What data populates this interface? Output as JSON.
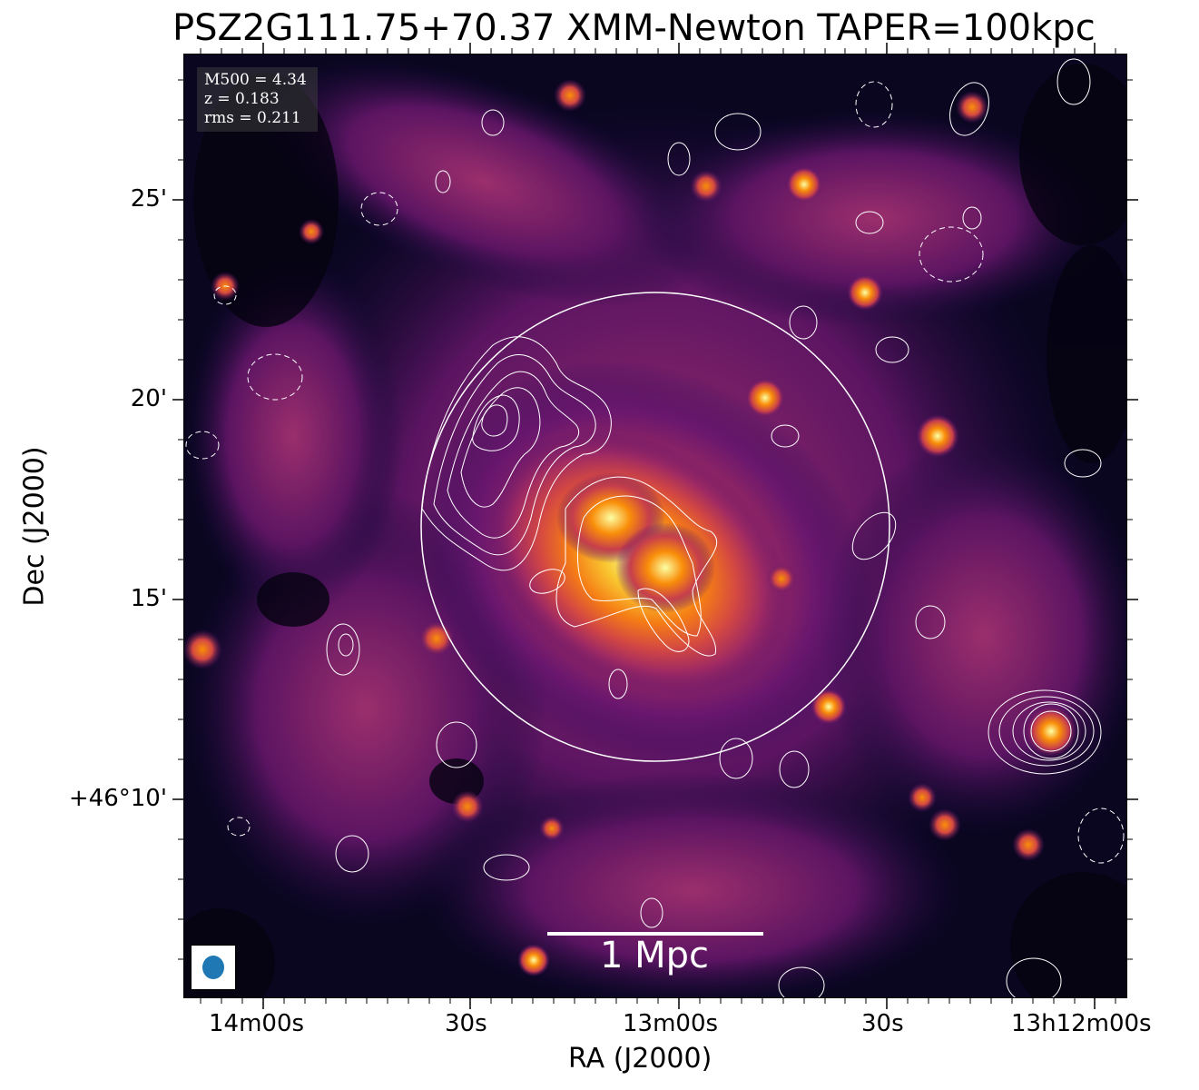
{
  "title": "PSZ2G111.75+70.37 XMM-Newton TAPER=100kpc",
  "info_box": {
    "m500": "M500 = 4.34",
    "z": "z = 0.183",
    "rms": "rms = 0.211"
  },
  "scalebar": {
    "label": "1 Mpc"
  },
  "axes": {
    "xlabel": "RA (J2000)",
    "ylabel": "Dec (J2000)",
    "xticks": [
      "14m00s",
      "30s",
      "13m00s",
      "30s",
      "13h12m00s"
    ],
    "yticks": [
      "25'",
      "20'",
      "15'",
      "+46°10'"
    ]
  },
  "colors": {
    "colormap": "inferno",
    "contour_color": "#ffffff",
    "beam_color": "#1f77b4"
  },
  "image": {
    "type": "X-ray surface brightness map with radio contours (solid positive, dashed negative), R500 circle, beam ellipse"
  }
}
